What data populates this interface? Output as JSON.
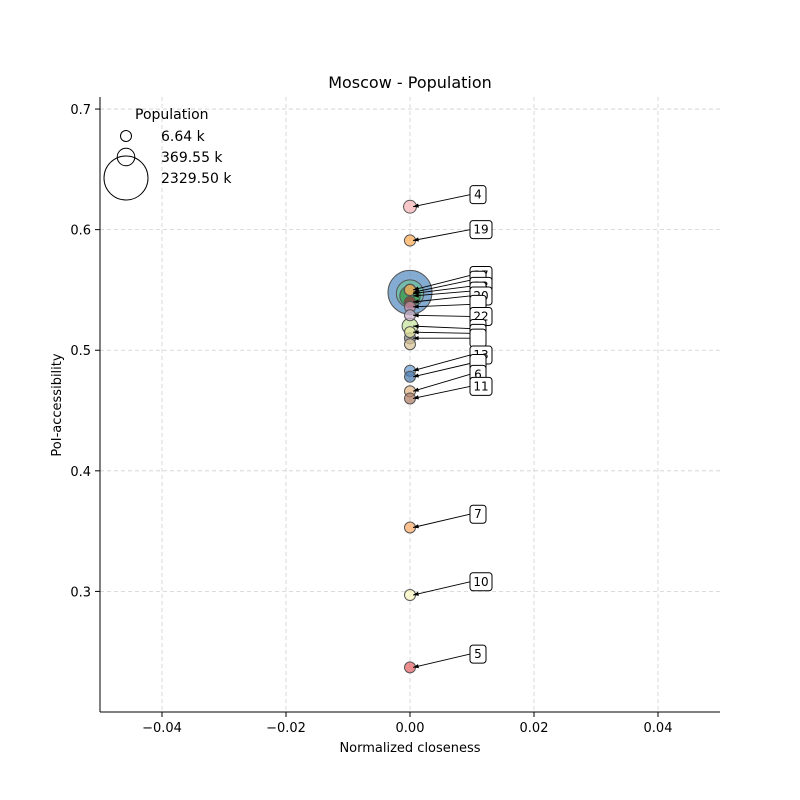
{
  "chart_data": {
    "type": "scatter",
    "title": "Moscow - Population",
    "xlabel": "Normalized closeness",
    "ylabel": "PoI-accessibility",
    "xlim": [
      -0.05,
      0.05
    ],
    "ylim": [
      0.2,
      0.71
    ],
    "xticks": [
      -0.04,
      -0.02,
      0.0,
      0.02,
      0.04
    ],
    "xtick_labels": [
      "−0.04",
      "−0.02",
      "0.00",
      "0.02",
      "0.04"
    ],
    "yticks": [
      0.3,
      0.4,
      0.5,
      0.6,
      0.7
    ],
    "ytick_labels": [
      "0.3",
      "0.4",
      "0.5",
      "0.6",
      "0.7"
    ],
    "grid": true,
    "legend": {
      "title": "Population",
      "placement": "top-left",
      "entries": [
        {
          "label": "6.64 k",
          "value": 6.64
        },
        {
          "label": "369.55 k",
          "value": 369.55
        },
        {
          "label": "2329.50 k",
          "value": 2329.5
        }
      ]
    },
    "points": [
      {
        "label": "4",
        "x": 0.0,
        "y": 0.619,
        "size": 200,
        "color": "#f7b6b8"
      },
      {
        "label": "19",
        "x": 0.0,
        "y": 0.591,
        "size": 150,
        "color": "#fdad5c"
      },
      {
        "label": "",
        "x": 0.0,
        "y": 0.548,
        "size": 2329.5,
        "color": "#5b8fc2"
      },
      {
        "label": "17",
        "x": 0.0,
        "y": 0.55,
        "size": 150,
        "color": "#e8c56a"
      },
      {
        "label": "",
        "x": 0.0,
        "y": 0.547,
        "size": 900,
        "color": "#6cc0a0"
      },
      {
        "label": "",
        "x": 0.0,
        "y": 0.545,
        "size": 500,
        "color": "#3a9a4a"
      },
      {
        "label": "23",
        "x": 0.0,
        "y": 0.55,
        "size": 160,
        "color": "#c0462f"
      },
      {
        "label": "",
        "x": 0.0,
        "y": 0.54,
        "size": 120,
        "color": "#8b3a3a"
      },
      {
        "label": "20",
        "x": 0.0,
        "y": 0.536,
        "size": 110,
        "color": "#c78fa5"
      },
      {
        "label": "",
        "x": 0.0,
        "y": 0.529,
        "size": 100,
        "color": "#c8b0c8"
      },
      {
        "label": "22",
        "x": 0.0,
        "y": 0.52,
        "size": 300,
        "color": "#c8e6a0"
      },
      {
        "label": "",
        "x": 0.0,
        "y": 0.515,
        "size": 100,
        "color": "#e6e6a0"
      },
      {
        "label": "",
        "x": 0.0,
        "y": 0.51,
        "size": 150,
        "color": "#8a8a8a"
      },
      {
        "label": "",
        "x": 0.0,
        "y": 0.505,
        "size": 130,
        "color": "#d8c49a"
      },
      {
        "label": "13",
        "x": 0.0,
        "y": 0.483,
        "size": 100,
        "color": "#6e9ed0"
      },
      {
        "label": "",
        "x": 0.0,
        "y": 0.478,
        "size": 90,
        "color": "#4f7fb3"
      },
      {
        "label": "6",
        "x": 0.0,
        "y": 0.466,
        "size": 90,
        "color": "#e6b88a"
      },
      {
        "label": "11",
        "x": 0.0,
        "y": 0.46,
        "size": 80,
        "color": "#b3826a"
      },
      {
        "label": "7",
        "x": 0.0,
        "y": 0.353,
        "size": 90,
        "color": "#fdae6b"
      },
      {
        "label": "10",
        "x": 0.0,
        "y": 0.297,
        "size": 80,
        "color": "#fbf5c0"
      },
      {
        "label": "5",
        "x": 0.0,
        "y": 0.237,
        "size": 80,
        "color": "#e6676b"
      }
    ],
    "annotations": [
      {
        "label": "4",
        "text_y": 0.629,
        "target_y": 0.619,
        "lines": 1
      },
      {
        "label": "19",
        "text_y": 0.6,
        "target_y": 0.591,
        "lines": 1
      },
      {
        "label": "17",
        "text_y": 0.562,
        "target_y": 0.55,
        "lines": 1
      },
      {
        "label": "",
        "text_y": 0.558,
        "target_y": 0.548,
        "lines": 1
      },
      {
        "label": "23",
        "text_y": 0.553,
        "target_y": 0.547,
        "lines": 1
      },
      {
        "label": "",
        "text_y": 0.549,
        "target_y": 0.545,
        "lines": 1
      },
      {
        "label": "20",
        "text_y": 0.545,
        "target_y": 0.54,
        "lines": 1
      },
      {
        "label": "",
        "text_y": 0.538,
        "target_y": 0.536,
        "lines": 1
      },
      {
        "label": "22",
        "text_y": 0.528,
        "target_y": 0.529,
        "lines": 1
      },
      {
        "label": "",
        "text_y": 0.518,
        "target_y": 0.52,
        "lines": 1
      },
      {
        "label": "",
        "text_y": 0.514,
        "target_y": 0.515,
        "lines": 1
      },
      {
        "label": "",
        "text_y": 0.51,
        "target_y": 0.51,
        "lines": 1
      },
      {
        "label": "13",
        "text_y": 0.496,
        "target_y": 0.483,
        "lines": 1
      },
      {
        "label": "",
        "text_y": 0.489,
        "target_y": 0.478,
        "lines": 1
      },
      {
        "label": "6",
        "text_y": 0.48,
        "target_y": 0.466,
        "lines": 1
      },
      {
        "label": "11",
        "text_y": 0.47,
        "target_y": 0.46,
        "lines": 1
      },
      {
        "label": "7",
        "text_y": 0.364,
        "target_y": 0.353,
        "lines": 1
      },
      {
        "label": "10",
        "text_y": 0.308,
        "target_y": 0.297,
        "lines": 1
      },
      {
        "label": "5",
        "text_y": 0.248,
        "target_y": 0.237,
        "lines": 1
      }
    ]
  }
}
